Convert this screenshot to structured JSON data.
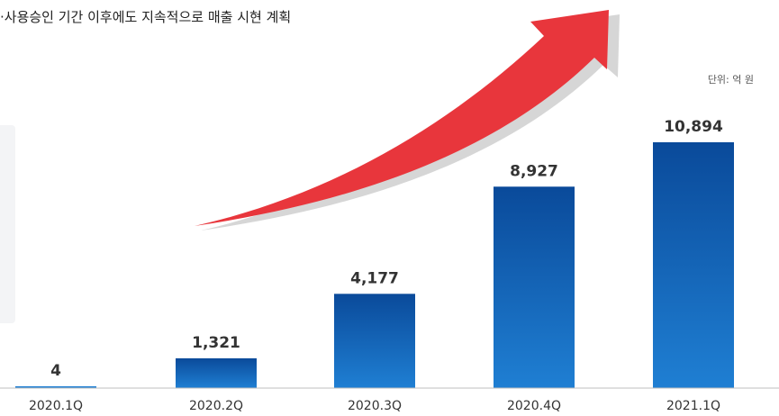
{
  "header": {
    "title": "·사용승인 기간 이후에도 지속적으로 매출 시현 계획",
    "unit": "단위: 억 원"
  },
  "colors": {
    "bar_top": "#0a4a9a",
    "bar_bottom": "#1f7fd3",
    "arrow": "#e8363c",
    "arrow_shadow": "#d6d6d6",
    "axis": "#bfbfbf"
  },
  "icons": [
    "trend-arrow-icon"
  ],
  "chart_data": {
    "type": "bar",
    "title": "",
    "xlabel": "",
    "ylabel": "",
    "categories": [
      "2020.1Q",
      "2020.2Q",
      "2020.3Q",
      "2020.4Q",
      "2021.1Q"
    ],
    "values": [
      4,
      1321,
      4177,
      8927,
      10894
    ],
    "value_labels": [
      "4",
      "1,321",
      "4,177",
      "8,927",
      "10,894"
    ],
    "ylim": [
      0,
      10894
    ],
    "grid": false,
    "legend": "none"
  }
}
